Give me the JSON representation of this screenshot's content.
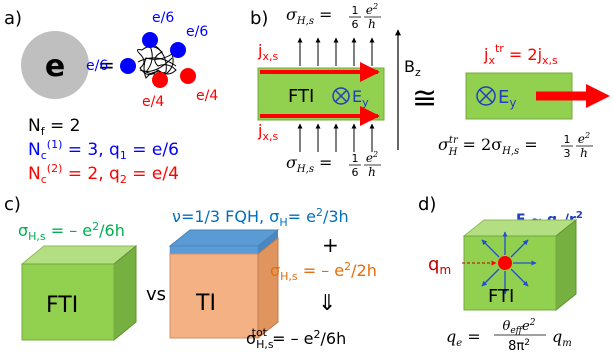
{
  "panel_a": {
    "label": "a)",
    "electron": "e",
    "equals": "=",
    "charge_sixth": "e/6",
    "charge_quarter": "e/4",
    "nf": "N",
    "nf_sub": "f",
    "nf_val": " = 2",
    "nc1": "N",
    "nc1_sub": "c",
    "nc1_sup": "(1)",
    "nc1_val": " = 3, q",
    "nc1_qsub": "1",
    "nc1_qval": " = e/6",
    "nc2": "N",
    "nc2_sub": "c",
    "nc2_sup": "(2)",
    "nc2_val": " = 2, q",
    "nc2_qsub": "2",
    "nc2_qval": " = e/4"
  },
  "panel_b": {
    "label": "b)",
    "sigma_top": "σ",
    "sigma_top_sub": "H,s",
    "sigma_top_val": " = ",
    "frac_num": "1",
    "frac_den": "6",
    "e2": "e",
    "e2_sup": "2",
    "h": "h",
    "j_top": "j",
    "j_top_sub": "x,s",
    "j_bot": "j",
    "j_bot_sub": "x,s",
    "fti": "FTI",
    "ey": "E",
    "ey_sub": "y",
    "bz": "B",
    "bz_sub": "z",
    "cong": "≅",
    "jtr": "j",
    "jtr_sub": "x",
    "jtr_sup": "tr",
    "jtr_val": " = 2j",
    "jtr_val_sub": "x,s",
    "sigma_tr": "σ",
    "sigma_tr_sup": "tr",
    "sigma_tr_sub": "H",
    "sigma_tr_mid": " = 2σ",
    "sigma_tr_mid_sub": "H,s",
    "sigma_tr_eq": " = ",
    "frac2_num": "1",
    "frac2_den": "3"
  },
  "panel_c": {
    "label": "c)",
    "fti_sigma": "σ",
    "fti_sigma_sub": "H,s",
    "fti_sigma_val": " = – e",
    "fti_sigma_sup": "2",
    "fti_sigma_tail": "/6h",
    "fti": "FTI",
    "vs": "vs",
    "fqh": "ν=1/3 FQH, σ",
    "fqh_sub": "H",
    "fqh_val": "= e",
    "fqh_sup": "2",
    "fqh_tail": "/3h",
    "plus": "+",
    "ti_sigma": "σ",
    "ti_sigma_sub": "H,s",
    "ti_sigma_val": " = – e",
    "ti_sigma_sup": "2",
    "ti_sigma_tail": "/2h",
    "implies": "⇓",
    "tot": "σ",
    "tot_sub": "H,s",
    "tot_sup": "tot",
    "tot_val": " = – e",
    "tot_sup2": "2",
    "tot_tail": "/6h",
    "ti": "TI"
  },
  "panel_d": {
    "label": "d)",
    "field": "E ~ q",
    "field_sub": "e",
    "field_tail": "/r",
    "field_sup": "2",
    "qm": "q",
    "qm_sub": "m",
    "fti": "FTI",
    "qe": "q",
    "qe_sub": "e",
    "qe_eq": " = ",
    "theta": "θ",
    "theta_sub": "eff",
    "theta_e": "e",
    "theta_sup": "2",
    "den": "8π",
    "den_sup": "2",
    "qm2": "q",
    "qm2_sub": "m"
  },
  "colors": {
    "green": "#92d050",
    "blue": "#0000ff",
    "red": "#ff0000",
    "teal": "#00b050",
    "orange": "#e46c0a",
    "fqh_blue": "#0070c0",
    "ti_face": "#f4b183",
    "top_blue": "#5b9bd5"
  }
}
